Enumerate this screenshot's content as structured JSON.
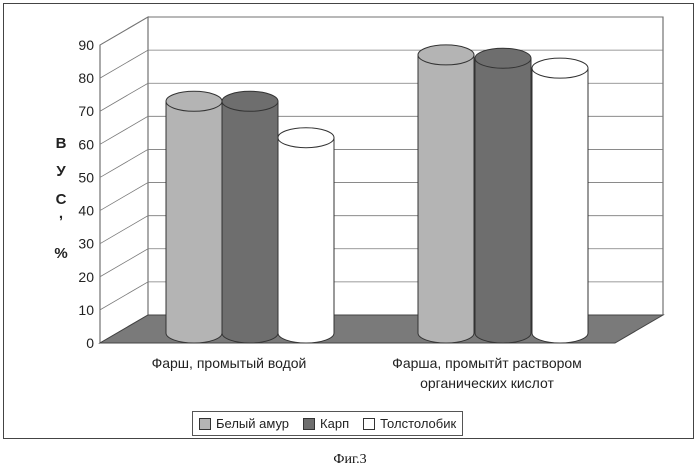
{
  "chart_data": {
    "type": "bar",
    "style": "3d-cylinder",
    "categories": [
      "Фарш, промытый водой",
      "Фарша, промытйт раствором органических кислот"
    ],
    "category_lines": [
      [
        "Фарш, промытый водой"
      ],
      [
        "Фарша, промытйт раствором",
        "органических кислот"
      ]
    ],
    "series": [
      {
        "name": "Белый амур",
        "values": [
          73,
          87
        ]
      },
      {
        "name": "Карп",
        "values": [
          73,
          86
        ]
      },
      {
        "name": "Толстолобик",
        "values": [
          62,
          83
        ]
      }
    ],
    "ylabel_chars": [
      "В",
      "У",
      "С",
      ",",
      "%"
    ],
    "ylim": [
      0,
      90
    ],
    "yticks": [
      0,
      10,
      20,
      30,
      40,
      50,
      60,
      70,
      80,
      90
    ],
    "grid": true,
    "legend_position": "bottom",
    "colors": {
      "series": [
        "#b4b4b4",
        "#6e6e6e",
        "#ffffff"
      ],
      "wall": "#ffffff",
      "floor": "#7a7a7a",
      "gridline": "#7a7a7a"
    }
  },
  "legend": {
    "items": [
      {
        "label": "Белый амур",
        "color": "#b4b4b4"
      },
      {
        "label": "Карп",
        "color": "#6e6e6e"
      },
      {
        "label": "Толстолобик",
        "color": "#ffffff"
      }
    ]
  },
  "caption": "Фиг.3"
}
